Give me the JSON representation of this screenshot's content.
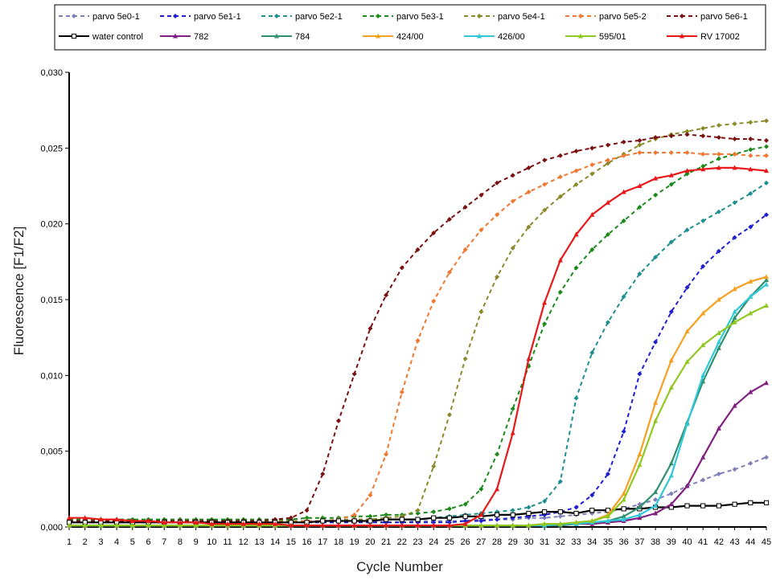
{
  "chart_data": {
    "type": "line",
    "title": "",
    "xlabel": "Cycle Number",
    "ylabel": "Fluorescence [F1/F2]",
    "x": [
      1,
      2,
      3,
      4,
      5,
      6,
      7,
      8,
      9,
      10,
      11,
      12,
      13,
      14,
      15,
      16,
      17,
      18,
      19,
      20,
      21,
      22,
      23,
      24,
      25,
      26,
      27,
      28,
      29,
      30,
      31,
      32,
      33,
      34,
      35,
      36,
      37,
      38,
      39,
      40,
      41,
      42,
      43,
      44,
      45
    ],
    "xlim": [
      1,
      45
    ],
    "ylim": [
      0,
      0.03
    ],
    "yticks": [
      "0,000",
      "0,005",
      "0,010",
      "0,015",
      "0,020",
      "0,025",
      "0,030"
    ],
    "xticks": [
      "1",
      "2",
      "3",
      "4",
      "5",
      "6",
      "7",
      "8",
      "9",
      "10",
      "11",
      "12",
      "13",
      "14",
      "15",
      "16",
      "17",
      "18",
      "19",
      "20",
      "21",
      "22",
      "23",
      "24",
      "25",
      "26",
      "27",
      "28",
      "29",
      "30",
      "31",
      "32",
      "33",
      "34",
      "35",
      "36",
      "37",
      "38",
      "39",
      "40",
      "41",
      "42",
      "43",
      "44",
      "45"
    ],
    "legend_position": "top",
    "grid": false,
    "series": [
      {
        "name": "parvo 5e0-1",
        "color": "#8080b8",
        "dashed": true,
        "marker": "diamond",
        "values": [
          0.0003,
          0.0003,
          0.0003,
          0.0003,
          0.0003,
          0.0003,
          0.0003,
          0.0003,
          0.0003,
          0.0003,
          0.0003,
          0.0003,
          0.0003,
          0.0003,
          0.0003,
          0.0003,
          0.0003,
          0.0003,
          0.0003,
          0.0003,
          0.0003,
          0.0003,
          0.0004,
          0.0004,
          0.0004,
          0.0004,
          0.0005,
          0.0005,
          0.0005,
          0.0006,
          0.0006,
          0.0007,
          0.0008,
          0.0009,
          0.001,
          0.0012,
          0.0015,
          0.0018,
          0.0022,
          0.0027,
          0.0031,
          0.0035,
          0.0038,
          0.0042,
          0.0046
        ]
      },
      {
        "name": "parvo 5e1-1",
        "color": "#1f1fd0",
        "dashed": true,
        "marker": "diamond",
        "values": [
          0.0003,
          0.0003,
          0.0003,
          0.0003,
          0.0003,
          0.0003,
          0.0003,
          0.0003,
          0.0003,
          0.0003,
          0.0003,
          0.0003,
          0.0003,
          0.0003,
          0.0003,
          0.0003,
          0.0003,
          0.0003,
          0.0003,
          0.0003,
          0.0003,
          0.0003,
          0.0003,
          0.0003,
          0.0003,
          0.0004,
          0.0004,
          0.0005,
          0.0006,
          0.0007,
          0.0008,
          0.001,
          0.0013,
          0.0021,
          0.0035,
          0.0063,
          0.0101,
          0.0122,
          0.0142,
          0.0158,
          0.0172,
          0.0182,
          0.0191,
          0.0198,
          0.0206
        ]
      },
      {
        "name": "parvo 5e2-1",
        "color": "#1e8e8e",
        "dashed": true,
        "marker": "diamond",
        "values": [
          0.0004,
          0.0004,
          0.0004,
          0.0004,
          0.0004,
          0.0004,
          0.0004,
          0.0004,
          0.0004,
          0.0004,
          0.0004,
          0.0004,
          0.0004,
          0.0004,
          0.0004,
          0.0004,
          0.0004,
          0.0004,
          0.0005,
          0.0005,
          0.0005,
          0.0005,
          0.0005,
          0.0006,
          0.0007,
          0.0008,
          0.0009,
          0.001,
          0.0011,
          0.0013,
          0.0017,
          0.003,
          0.0085,
          0.0115,
          0.0135,
          0.0152,
          0.0167,
          0.0178,
          0.0188,
          0.0196,
          0.0202,
          0.0208,
          0.0214,
          0.022,
          0.0227
        ]
      },
      {
        "name": "parvo 5e3-1",
        "color": "#1a8a1a",
        "dashed": true,
        "marker": "diamond",
        "values": [
          0.0005,
          0.0005,
          0.0005,
          0.0005,
          0.0005,
          0.0005,
          0.0005,
          0.0005,
          0.0005,
          0.0005,
          0.0005,
          0.0005,
          0.0005,
          0.0005,
          0.0005,
          0.0006,
          0.0006,
          0.0006,
          0.0007,
          0.0007,
          0.0008,
          0.0008,
          0.0009,
          0.001,
          0.0012,
          0.0015,
          0.0025,
          0.0048,
          0.0078,
          0.0106,
          0.0134,
          0.0155,
          0.0171,
          0.0183,
          0.0193,
          0.0202,
          0.0211,
          0.0219,
          0.0226,
          0.0233,
          0.0238,
          0.0243,
          0.0246,
          0.0249,
          0.0251
        ]
      },
      {
        "name": "parvo 5e4-1",
        "color": "#8a8a2a",
        "dashed": true,
        "marker": "diamond",
        "values": [
          0.0004,
          0.0004,
          0.0004,
          0.0004,
          0.0004,
          0.0004,
          0.0004,
          0.0004,
          0.0004,
          0.0004,
          0.0004,
          0.0004,
          0.0004,
          0.0004,
          0.0004,
          0.0004,
          0.0004,
          0.0005,
          0.0005,
          0.0005,
          0.0006,
          0.0007,
          0.0011,
          0.004,
          0.0074,
          0.0111,
          0.0142,
          0.0165,
          0.0184,
          0.0198,
          0.0209,
          0.0218,
          0.0226,
          0.0233,
          0.024,
          0.0246,
          0.0252,
          0.0256,
          0.0259,
          0.0261,
          0.0263,
          0.0265,
          0.0266,
          0.0267,
          0.0268
        ]
      },
      {
        "name": "parvo 5e5-2",
        "color": "#f07830",
        "dashed": true,
        "marker": "diamond",
        "values": [
          0.0003,
          0.0003,
          0.0003,
          0.0003,
          0.0003,
          0.0003,
          0.0003,
          0.0003,
          0.0003,
          0.0003,
          0.0003,
          0.0003,
          0.0003,
          0.0003,
          0.0003,
          0.0004,
          0.0004,
          0.0005,
          0.0008,
          0.0021,
          0.0048,
          0.0089,
          0.0123,
          0.0149,
          0.0168,
          0.0183,
          0.0196,
          0.0206,
          0.0215,
          0.0221,
          0.0226,
          0.0231,
          0.0235,
          0.0239,
          0.0242,
          0.0245,
          0.0247,
          0.0247,
          0.0247,
          0.0247,
          0.0246,
          0.0246,
          0.0246,
          0.0245,
          0.0245
        ]
      },
      {
        "name": "parvo 5e6-1",
        "color": "#7a1010",
        "dashed": true,
        "marker": "diamond",
        "values": [
          0.0004,
          0.0004,
          0.0004,
          0.0004,
          0.0004,
          0.0004,
          0.0004,
          0.0004,
          0.0004,
          0.0004,
          0.0004,
          0.0004,
          0.0004,
          0.0005,
          0.0006,
          0.0011,
          0.0035,
          0.007,
          0.0101,
          0.0131,
          0.0153,
          0.0171,
          0.0183,
          0.0194,
          0.0203,
          0.0211,
          0.0219,
          0.0227,
          0.0232,
          0.0237,
          0.0242,
          0.0245,
          0.0248,
          0.025,
          0.0252,
          0.0254,
          0.0255,
          0.0257,
          0.0258,
          0.0259,
          0.0258,
          0.0257,
          0.0256,
          0.0256,
          0.0255
        ]
      },
      {
        "name": "water control",
        "color": "#000000",
        "dashed": false,
        "marker": "square",
        "values": [
          0.0003,
          0.0003,
          0.0003,
          0.0003,
          0.0003,
          0.0003,
          0.0003,
          0.0003,
          0.0003,
          0.0003,
          0.0003,
          0.0003,
          0.0003,
          0.0003,
          0.0003,
          0.0003,
          0.0004,
          0.0004,
          0.0004,
          0.0004,
          0.0005,
          0.0005,
          0.0005,
          0.0006,
          0.0006,
          0.0007,
          0.0007,
          0.0008,
          0.0008,
          0.0009,
          0.001,
          0.001,
          0.0009,
          0.0011,
          0.0011,
          0.0012,
          0.0012,
          0.0013,
          0.0013,
          0.0014,
          0.0014,
          0.0014,
          0.0015,
          0.0016,
          0.0016
        ]
      },
      {
        "name": "782",
        "color": "#802080",
        "dashed": false,
        "marker": "triangle",
        "values": [
          0.0001,
          0.0001,
          0.0001,
          0.0001,
          0.0001,
          0.0001,
          0.0001,
          0.0001,
          0.0001,
          0.0001,
          0.0001,
          0.0001,
          0.0001,
          0.0001,
          0.0001,
          0.0001,
          0.0001,
          0.0001,
          0.0001,
          0.0001,
          0.0001,
          0.0001,
          0.0001,
          0.0001,
          0.0001,
          0.0001,
          0.0001,
          0.0001,
          0.0001,
          0.0001,
          0.0001,
          0.0001,
          0.0002,
          0.0002,
          0.0003,
          0.0004,
          0.0006,
          0.0009,
          0.0015,
          0.0027,
          0.0046,
          0.0065,
          0.008,
          0.0089,
          0.0095
        ]
      },
      {
        "name": "784",
        "color": "#309070",
        "dashed": false,
        "marker": "triangle",
        "values": [
          0.0001,
          0.0001,
          0.0001,
          0.0001,
          0.0001,
          0.0001,
          0.0001,
          0.0001,
          0.0001,
          0.0001,
          0.0001,
          0.0001,
          0.0001,
          0.0001,
          0.0001,
          0.0001,
          0.0001,
          0.0001,
          0.0001,
          0.0001,
          0.0001,
          0.0001,
          0.0001,
          0.0001,
          0.0001,
          0.0001,
          0.0001,
          0.0001,
          0.0001,
          0.0001,
          0.0001,
          0.0001,
          0.0002,
          0.0003,
          0.0004,
          0.0007,
          0.0013,
          0.0023,
          0.0042,
          0.0069,
          0.0096,
          0.0118,
          0.0138,
          0.0152,
          0.0163
        ]
      },
      {
        "name": "424/00",
        "color": "#f5a020",
        "dashed": false,
        "marker": "triangle",
        "values": [
          0.0001,
          0.0001,
          0.0001,
          0.0001,
          0.0001,
          0.0001,
          0.0001,
          0.0001,
          0.0001,
          0.0001,
          0.0001,
          0.0001,
          0.0001,
          0.0001,
          0.0001,
          0.0001,
          0.0001,
          0.0001,
          0.0001,
          0.0001,
          0.0001,
          0.0001,
          0.0001,
          0.0001,
          0.0001,
          0.0001,
          0.0001,
          0.0001,
          0.0001,
          0.0001,
          0.0002,
          0.0002,
          0.0003,
          0.0004,
          0.0008,
          0.0022,
          0.0048,
          0.0082,
          0.011,
          0.0129,
          0.0141,
          0.015,
          0.0157,
          0.0162,
          0.0165
        ]
      },
      {
        "name": "426/00",
        "color": "#30c8d8",
        "dashed": false,
        "marker": "triangle",
        "values": [
          0.0001,
          0.0001,
          0.0001,
          0.0001,
          0.0001,
          0.0001,
          0.0001,
          0.0001,
          0.0001,
          0.0001,
          0.0001,
          0.0001,
          0.0001,
          0.0001,
          0.0001,
          0.0001,
          0.0001,
          0.0001,
          0.0001,
          0.0001,
          0.0001,
          0.0001,
          0.0001,
          0.0001,
          0.0001,
          0.0001,
          0.0001,
          0.0001,
          0.0001,
          0.0001,
          0.0001,
          0.0002,
          0.0002,
          0.0003,
          0.0004,
          0.0005,
          0.0008,
          0.0014,
          0.0034,
          0.0068,
          0.01,
          0.0122,
          0.0142,
          0.0152,
          0.016
        ]
      },
      {
        "name": "595/01",
        "color": "#90c820",
        "dashed": false,
        "marker": "triangle",
        "values": [
          0.0001,
          0.0001,
          0.0001,
          0.0001,
          0.0001,
          0.0001,
          0.0001,
          0.0001,
          0.0001,
          0.0001,
          0.0001,
          0.0001,
          0.0001,
          0.0001,
          0.0001,
          0.0001,
          0.0001,
          0.0001,
          0.0001,
          0.0001,
          0.0001,
          0.0001,
          0.0001,
          0.0001,
          0.0001,
          0.0001,
          0.0001,
          0.0001,
          0.0001,
          0.0001,
          0.0002,
          0.0002,
          0.0003,
          0.0004,
          0.0007,
          0.0018,
          0.0041,
          0.007,
          0.0092,
          0.0109,
          0.012,
          0.0128,
          0.0135,
          0.0141,
          0.0146
        ]
      },
      {
        "name": "RV 17002",
        "color": "#e81818",
        "dashed": false,
        "marker": "triangle",
        "values": [
          0.0006,
          0.0006,
          0.0005,
          0.0005,
          0.0004,
          0.0004,
          0.0003,
          0.0003,
          0.0003,
          0.0002,
          0.0002,
          0.0002,
          0.0002,
          0.0002,
          0.0001,
          0.0001,
          0.0001,
          0.0001,
          0.0001,
          0.0001,
          0.0001,
          0.0001,
          0.0001,
          0.0001,
          0.0001,
          0.0002,
          0.0008,
          0.0025,
          0.0062,
          0.0111,
          0.0148,
          0.0176,
          0.0193,
          0.0206,
          0.0214,
          0.0221,
          0.0225,
          0.023,
          0.0232,
          0.0235,
          0.0236,
          0.0237,
          0.0237,
          0.0236,
          0.0235
        ]
      }
    ]
  }
}
